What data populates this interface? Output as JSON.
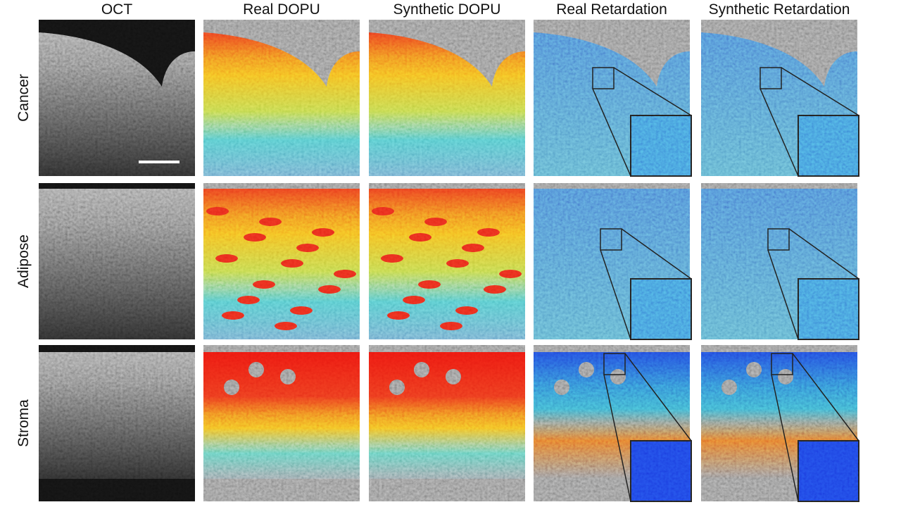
{
  "columns": [
    "OCT",
    "Real DOPU",
    "Synthetic DOPU",
    "Real Retardation",
    "Synthetic Retardation"
  ],
  "rows": [
    "Cancer",
    "Adipose",
    "Stroma"
  ]
}
